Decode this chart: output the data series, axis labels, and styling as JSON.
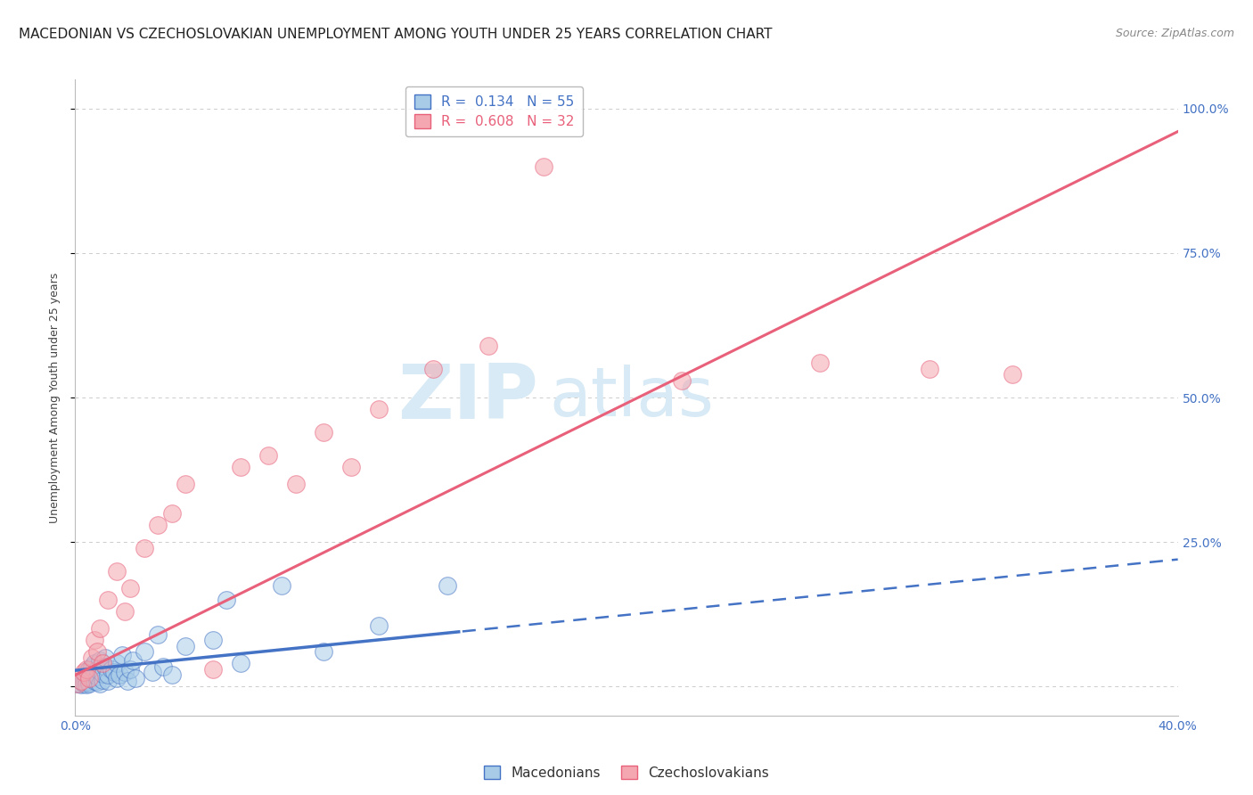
{
  "title": "MACEDONIAN VS CZECHOSLOVAKIAN UNEMPLOYMENT AMONG YOUTH UNDER 25 YEARS CORRELATION CHART",
  "source": "Source: ZipAtlas.com",
  "ylabel": "Unemployment Among Youth under 25 years",
  "legend_macedonians": "Macedonians",
  "legend_czechoslovakians": "Czechoslovakians",
  "R_macedonians": 0.134,
  "N_macedonians": 55,
  "R_czechoslovakians": 0.608,
  "N_czechoslovakians": 32,
  "color_macedonians": "#a8cce8",
  "color_czechoslovakians": "#f4a7b0",
  "color_trendline_mac": "#4472c4",
  "color_trendline_czecho": "#e8607a",
  "watermark_zip": "ZIP",
  "watermark_atlas": "atlas",
  "watermark_color": "#d8eaf5",
  "xlim": [
    0.0,
    0.4
  ],
  "ylim": [
    -0.05,
    1.05
  ],
  "yticks": [
    0.0,
    0.25,
    0.5,
    0.75,
    1.0
  ],
  "ytick_labels": [
    "",
    "25.0%",
    "50.0%",
    "75.0%",
    "100.0%"
  ],
  "xticks": [
    0.0,
    0.05,
    0.1,
    0.15,
    0.2,
    0.25,
    0.3,
    0.35,
    0.4
  ],
  "xtick_labels": [
    "0.0%",
    "",
    "",
    "",
    "",
    "",
    "",
    "",
    "40.0%"
  ],
  "macedonians_x": [
    0.001,
    0.002,
    0.002,
    0.003,
    0.003,
    0.003,
    0.004,
    0.004,
    0.004,
    0.004,
    0.005,
    0.005,
    0.005,
    0.005,
    0.006,
    0.006,
    0.006,
    0.007,
    0.007,
    0.007,
    0.008,
    0.008,
    0.008,
    0.009,
    0.009,
    0.01,
    0.01,
    0.011,
    0.011,
    0.012,
    0.012,
    0.013,
    0.014,
    0.015,
    0.015,
    0.016,
    0.017,
    0.018,
    0.019,
    0.02,
    0.021,
    0.022,
    0.025,
    0.028,
    0.03,
    0.032,
    0.035,
    0.04,
    0.05,
    0.055,
    0.06,
    0.075,
    0.09,
    0.11,
    0.135
  ],
  "macedonians_y": [
    0.005,
    0.01,
    0.003,
    0.008,
    0.015,
    0.005,
    0.012,
    0.02,
    0.003,
    0.025,
    0.008,
    0.018,
    0.03,
    0.005,
    0.015,
    0.025,
    0.035,
    0.01,
    0.02,
    0.04,
    0.008,
    0.018,
    0.03,
    0.045,
    0.005,
    0.012,
    0.022,
    0.035,
    0.05,
    0.01,
    0.02,
    0.03,
    0.025,
    0.015,
    0.04,
    0.02,
    0.055,
    0.025,
    0.01,
    0.03,
    0.045,
    0.015,
    0.06,
    0.025,
    0.09,
    0.035,
    0.02,
    0.07,
    0.08,
    0.15,
    0.04,
    0.175,
    0.06,
    0.105,
    0.175
  ],
  "czechoslovakians_x": [
    0.001,
    0.002,
    0.003,
    0.004,
    0.005,
    0.006,
    0.007,
    0.008,
    0.009,
    0.01,
    0.012,
    0.015,
    0.018,
    0.02,
    0.025,
    0.03,
    0.035,
    0.04,
    0.05,
    0.06,
    0.07,
    0.08,
    0.09,
    0.1,
    0.11,
    0.13,
    0.15,
    0.17,
    0.22,
    0.27,
    0.31,
    0.34
  ],
  "czechoslovakians_y": [
    0.005,
    0.01,
    0.025,
    0.03,
    0.015,
    0.05,
    0.08,
    0.06,
    0.1,
    0.04,
    0.15,
    0.2,
    0.13,
    0.17,
    0.24,
    0.28,
    0.3,
    0.35,
    0.03,
    0.38,
    0.4,
    0.35,
    0.44,
    0.38,
    0.48,
    0.55,
    0.59,
    0.9,
    0.53,
    0.56,
    0.55,
    0.54
  ],
  "background_color": "#ffffff",
  "grid_color": "#cccccc",
  "title_fontsize": 11,
  "axis_label_fontsize": 9,
  "tick_fontsize": 10,
  "legend_fontsize": 11,
  "source_fontsize": 9,
  "trendline_mac_intercept": 0.028,
  "trendline_mac_slope": 0.48,
  "trendline_czecho_intercept": 0.02,
  "trendline_czecho_slope": 2.35
}
